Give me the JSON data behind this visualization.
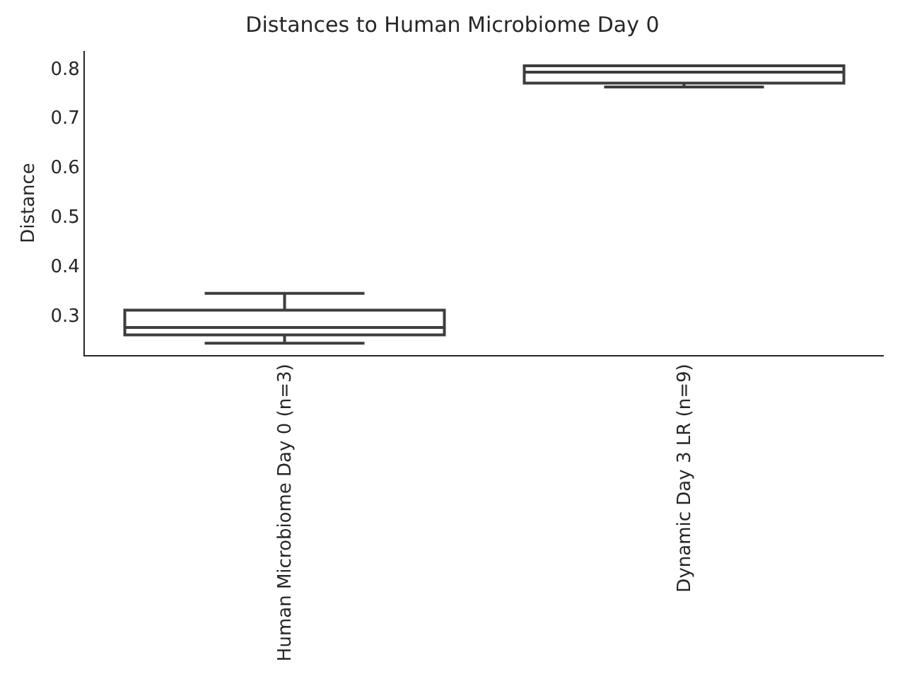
{
  "chart_data": {
    "type": "box",
    "title": "Distances to Human Microbiome Day 0",
    "ylabel": "Distance",
    "categories": [
      "Human Microbiome Day 0 (n=3)",
      "Dynamic Day 3 LR (n=9)"
    ],
    "boxes": [
      {
        "low": 0.243,
        "q1": 0.26,
        "median": 0.275,
        "q3": 0.31,
        "high": 0.344
      },
      {
        "low": 0.762,
        "q1": 0.77,
        "median": 0.792,
        "q3": 0.805,
        "high": 0.805
      }
    ],
    "color": "#3d3d3d",
    "ylim": [
      0.219,
      0.835
    ],
    "yticks": [
      0.3,
      0.4,
      0.5,
      0.6,
      0.7,
      0.8
    ],
    "grid": false,
    "legend": false
  }
}
